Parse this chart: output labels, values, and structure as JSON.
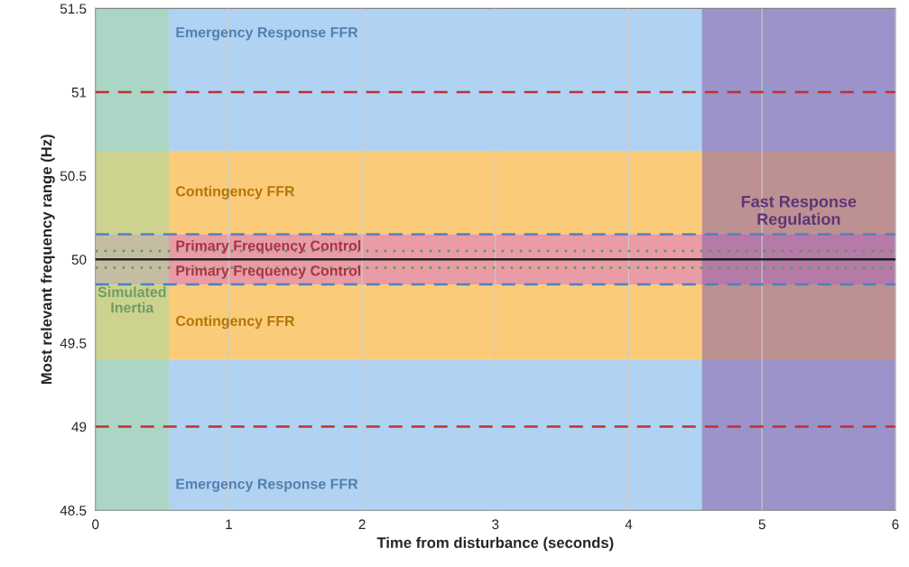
{
  "chart_data": {
    "type": "line",
    "xlabel": "Time from disturbance (seconds)",
    "ylabel": "Most relevant frequency range (Hz)",
    "x": [
      0,
      6
    ],
    "values": [
      50,
      50
    ],
    "color": "#202020",
    "line_style": "solid",
    "marker": "none",
    "xlim": [
      0,
      6
    ],
    "xticks": [
      0,
      1,
      2,
      3,
      4,
      5,
      6
    ],
    "ylim": [
      48.5,
      51.5
    ],
    "yticks": [
      48.5,
      49,
      49.5,
      50,
      50.5,
      51,
      51.5
    ],
    "grid": "x",
    "bands": [
      {
        "axis": "y",
        "from": 50.65,
        "to": 51.5,
        "color": "#8fc0f0",
        "label": "Emergency Response FFR"
      },
      {
        "axis": "y",
        "from": 48.5,
        "to": 49.4,
        "color": "#8fc0f0",
        "label": "Emergency Response FFR"
      },
      {
        "axis": "y",
        "from": 50.15,
        "to": 50.65,
        "color": "#f8b640",
        "label": "Contingency FFR"
      },
      {
        "axis": "y",
        "from": 49.4,
        "to": 49.85,
        "color": "#f8b640",
        "label": "Contingency FFR"
      },
      {
        "axis": "y",
        "from": 50,
        "to": 50.15,
        "color": "#e07080",
        "label": "Primary Frequency Control"
      },
      {
        "axis": "y",
        "from": 49.85,
        "to": 50,
        "color": "#e07080",
        "label": "Primary Frequency Control"
      },
      {
        "axis": "x",
        "from": 0,
        "to": 0.55,
        "color": "#a8d8a0",
        "label": "Simulated\nInertia"
      },
      {
        "axis": "x",
        "from": 4.55,
        "to": 6,
        "color": "#8a5fa8",
        "label": "Fast Response\nRegulation"
      }
    ],
    "ref_lines": [
      {
        "axis": "y",
        "value": 51,
        "color": "#c03030",
        "line_style": "dashed"
      },
      {
        "axis": "y",
        "value": 49,
        "color": "#c03030",
        "line_style": "dashed"
      },
      {
        "axis": "y",
        "value": 50.15,
        "color": "#5080c0",
        "line_style": "dashed"
      },
      {
        "axis": "y",
        "value": 49.85,
        "color": "#5080c0",
        "line_style": "dashed"
      },
      {
        "axis": "y",
        "value": 50.05,
        "color": "#50a040",
        "line_style": "dotted"
      },
      {
        "axis": "y",
        "value": 49.95,
        "color": "#50a040",
        "line_style": "dotted"
      }
    ]
  }
}
